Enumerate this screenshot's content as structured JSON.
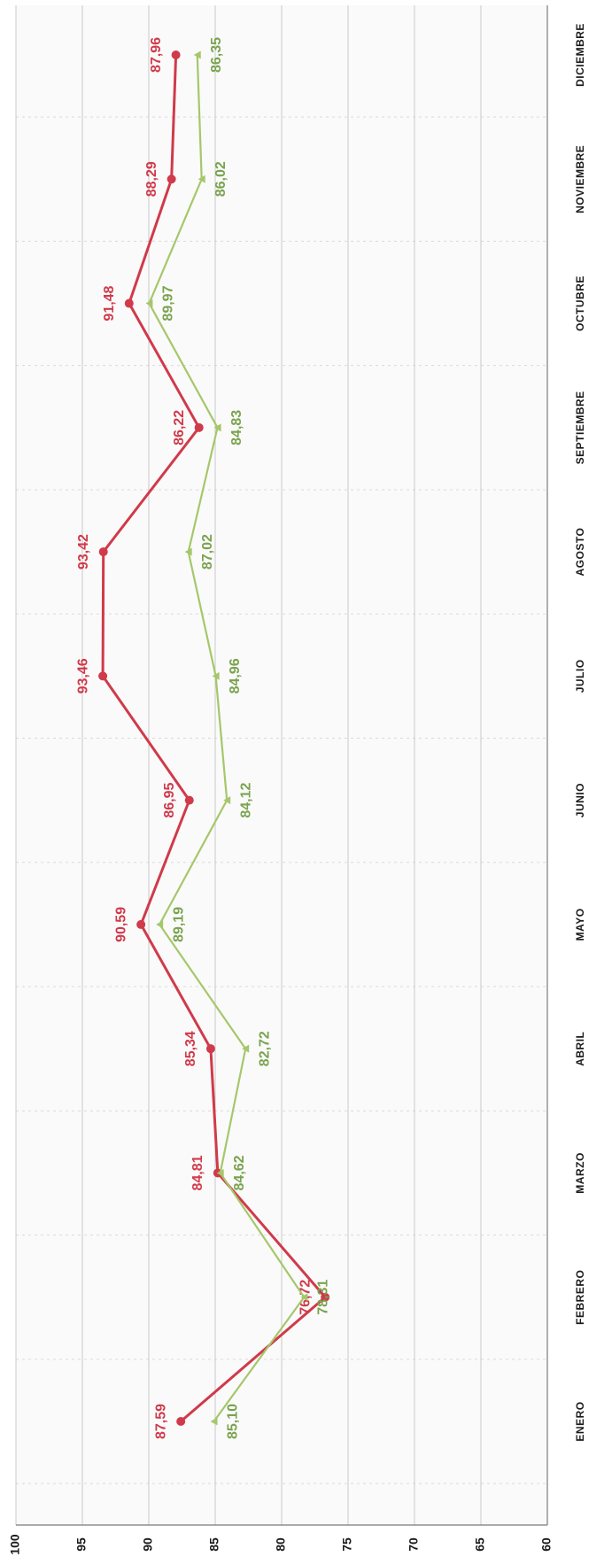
{
  "chart_data": {
    "type": "line",
    "orientation": "rotated-90-ccw",
    "categories": [
      "ENERO",
      "FEBRERO",
      "MARZO",
      "ABRIL",
      "MAYO",
      "JUNIO",
      "JULIO",
      "AGOSTO",
      "SEPTIEMBRE",
      "OCTUBRE",
      "NOVIEMBRE",
      "DICIEMBRE"
    ],
    "ylim": [
      60,
      100
    ],
    "yticks": [
      60,
      65,
      70,
      75,
      80,
      85,
      90,
      95,
      100
    ],
    "grid": true,
    "title": "",
    "xlabel": "",
    "ylabel": "",
    "series": [
      {
        "color": "#d03a4a",
        "marker": "circle",
        "values": [
          87.59,
          76.72,
          84.81,
          85.34,
          90.59,
          86.95,
          93.46,
          93.42,
          86.22,
          91.48,
          88.29,
          87.96
        ],
        "labels": [
          "87,59",
          "76,72",
          "84,81",
          "85,34",
          "90,59",
          "86,95",
          "93,46",
          "93,42",
          "86,22",
          "91,48",
          "88,29",
          "87,96"
        ]
      },
      {
        "color": "#a6c76a",
        "label_color": "#79a34e",
        "marker": "triangle",
        "values": [
          85.1,
          78.31,
          84.62,
          82.72,
          89.19,
          84.12,
          84.96,
          87.02,
          84.83,
          89.97,
          86.02,
          86.35
        ],
        "labels": [
          "85,10",
          "78,31",
          "84,62",
          "82,72",
          "89,19",
          "84,12",
          "84,96",
          "87,02",
          "84,83",
          "89,97",
          "86,02",
          "86,35"
        ]
      }
    ]
  }
}
